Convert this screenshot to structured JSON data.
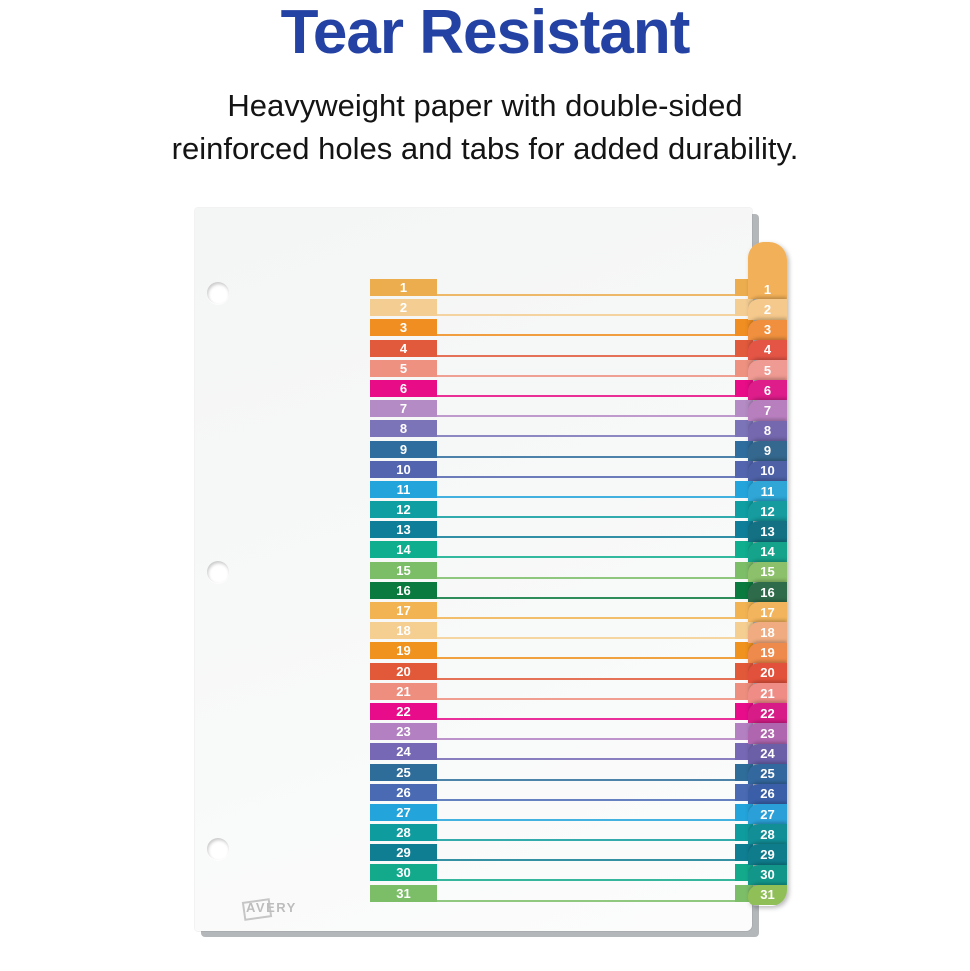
{
  "header": {
    "title": "Tear Resistant",
    "subtitle_line1": "Heavyweight paper with double-sided",
    "subtitle_line2": "reinforced holes and tabs for added durability."
  },
  "colors": {
    "title_blue": "#2442A3",
    "subtitle_black": "#141414",
    "sheet_background": "#f6f7f7",
    "stack_edge_gray": "#b4b7ba",
    "logo_gray": "#bdbdbd"
  },
  "divider": {
    "brand": "AVERY",
    "tab_count": 31,
    "rows": [
      {
        "n": "1",
        "color": "#EBAD4D",
        "tab_color": "#F2B058"
      },
      {
        "n": "2",
        "color": "#F3CD92",
        "tab_color": "#F5C98C"
      },
      {
        "n": "3",
        "color": "#F08E21",
        "tab_color": "#F0903E"
      },
      {
        "n": "4",
        "color": "#E25A3C",
        "tab_color": "#E55546"
      },
      {
        "n": "5",
        "color": "#EE9181",
        "tab_color": "#EF9A92"
      },
      {
        "n": "6",
        "color": "#E80C86",
        "tab_color": "#DE1D8A"
      },
      {
        "n": "7",
        "color": "#B48BC4",
        "tab_color": "#B87FBE"
      },
      {
        "n": "8",
        "color": "#7B74B8",
        "tab_color": "#7568AE"
      },
      {
        "n": "9",
        "color": "#2F6D9E",
        "tab_color": "#35688E"
      },
      {
        "n": "10",
        "color": "#5365AE",
        "tab_color": "#4E61A6"
      },
      {
        "n": "11",
        "color": "#23A5DC",
        "tab_color": "#2FA6D6"
      },
      {
        "n": "12",
        "color": "#0F9EA2",
        "tab_color": "#169B9E"
      },
      {
        "n": "13",
        "color": "#0F7E98",
        "tab_color": "#137183"
      },
      {
        "n": "14",
        "color": "#0FAE8E",
        "tab_color": "#16A38B"
      },
      {
        "n": "15",
        "color": "#7CBE68",
        "tab_color": "#8CC06A"
      },
      {
        "n": "16",
        "color": "#0B7A3E",
        "tab_color": "#2E6B4A"
      },
      {
        "n": "17",
        "color": "#F2B452",
        "tab_color": "#F2B45C"
      },
      {
        "n": "18",
        "color": "#F5CF92",
        "tab_color": "#F0AC80"
      },
      {
        "n": "19",
        "color": "#F0921E",
        "tab_color": "#EE8A4B"
      },
      {
        "n": "20",
        "color": "#E2593A",
        "tab_color": "#E2513B"
      },
      {
        "n": "21",
        "color": "#EE8E7E",
        "tab_color": "#EE8C85"
      },
      {
        "n": "22",
        "color": "#E80C8A",
        "tab_color": "#D81C87"
      },
      {
        "n": "23",
        "color": "#B381C2",
        "tab_color": "#B066AE"
      },
      {
        "n": "24",
        "color": "#7668B4",
        "tab_color": "#6B5FA8"
      },
      {
        "n": "25",
        "color": "#2E6D9A",
        "tab_color": "#33689E"
      },
      {
        "n": "26",
        "color": "#4A6BB4",
        "tab_color": "#3A5FA8"
      },
      {
        "n": "27",
        "color": "#23A4DA",
        "tab_color": "#2BA0D8"
      },
      {
        "n": "28",
        "color": "#0F9C9E",
        "tab_color": "#118E96"
      },
      {
        "n": "29",
        "color": "#0F7E93",
        "tab_color": "#0F7C8C"
      },
      {
        "n": "30",
        "color": "#13AA8C",
        "tab_color": "#12968A"
      },
      {
        "n": "31",
        "color": "#7CBE68",
        "tab_color": "#8FBF56"
      }
    ]
  }
}
